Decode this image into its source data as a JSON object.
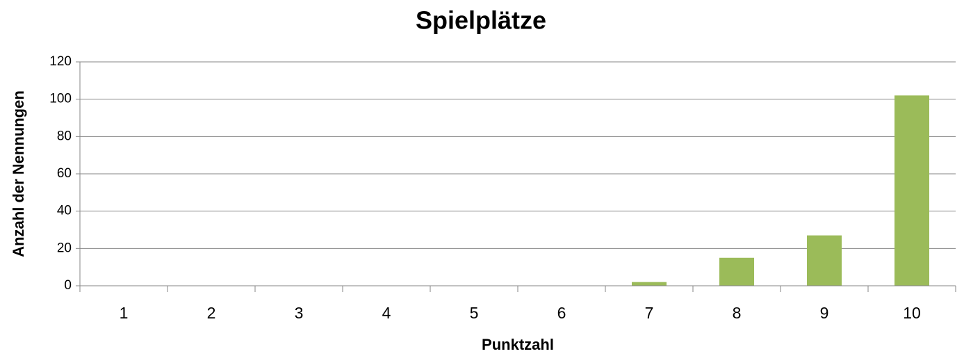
{
  "chart_data": {
    "type": "bar",
    "title": "Spielplätze",
    "x_label": "Punktzahl",
    "y_label": "Anzahl der Nennungen",
    "categories": [
      "1",
      "2",
      "3",
      "4",
      "5",
      "6",
      "7",
      "8",
      "9",
      "10"
    ],
    "values": [
      0,
      0,
      0,
      0,
      0,
      0,
      2,
      15,
      27,
      102
    ],
    "color": "#9bbb59",
    "ylim": [
      0,
      120
    ],
    "yticks": [
      0,
      20,
      40,
      60,
      80,
      100,
      120
    ],
    "grid": true
  }
}
